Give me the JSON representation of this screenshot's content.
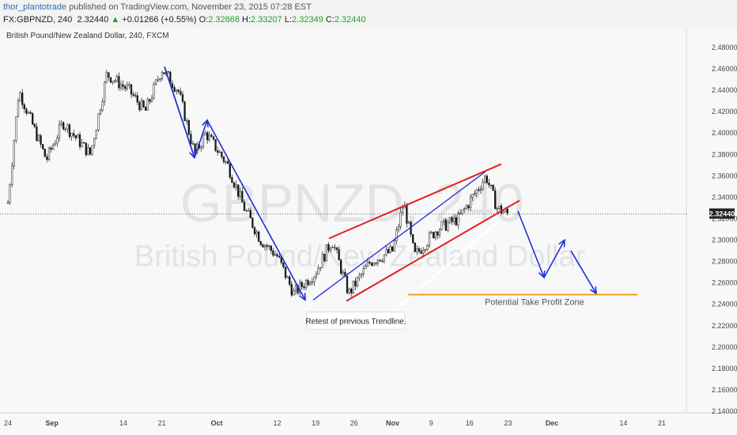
{
  "header": {
    "user": "thor_plantotrade",
    "published": "published on TradingView.com, November 23, 2015 07:28 EST",
    "symbol": "FX:GBPNZD, 240",
    "last": "2.32440",
    "change_arrow": "▲",
    "change": "+0.01266 (+0.55%)",
    "o_label": "O:",
    "o_val": "2.32868",
    "h_label": "H:",
    "h_val": "2.33207",
    "l_label": "L:",
    "l_val": "2.32349",
    "c_label": "C:",
    "c_val": "2.32440"
  },
  "chart_data": {
    "type": "candlestick",
    "symbol_label": "British Pound/New Zealand Dollar, 240, FXCM",
    "watermark_symbol": "GBPNZD, 240",
    "watermark_name": "British Pound/New Zealand Dollar",
    "ylim": [
      2.14,
      2.49
    ],
    "y_ticks": [
      "2.48000",
      "2.46000",
      "2.44000",
      "2.42000",
      "2.40000",
      "2.38000",
      "2.36000",
      "2.34000",
      "2.32000",
      "2.30000",
      "2.28000",
      "2.26000",
      "2.24000",
      "2.22000",
      "2.20000",
      "2.18000",
      "2.16000",
      "2.14000"
    ],
    "x_ticks": [
      "24",
      "Sep",
      "14",
      "21",
      "Oct",
      "12",
      "19",
      "26",
      "Nov",
      "9",
      "16",
      "23",
      "Dec",
      "14",
      "21"
    ],
    "last_price": "2.32440",
    "last_price_value": 2.3244,
    "path": [
      {
        "x": "Aug 24",
        "y": 2.335
      },
      {
        "x": "Aug 26",
        "y": 2.44
      },
      {
        "x": "Aug 31",
        "y": 2.375
      },
      {
        "x": "Sep 3",
        "y": 2.41
      },
      {
        "x": "Sep 8",
        "y": 2.38
      },
      {
        "x": "Sep 11",
        "y": 2.455
      },
      {
        "x": "Sep 15",
        "y": 2.44
      },
      {
        "x": "Sep 18",
        "y": 2.42
      },
      {
        "x": "Sep 21",
        "y": 2.46
      },
      {
        "x": "Sep 24",
        "y": 2.44
      },
      {
        "x": "Sep 27",
        "y": 2.38
      },
      {
        "x": "Sep 29",
        "y": 2.4
      },
      {
        "x": "Oct 3",
        "y": 2.37
      },
      {
        "x": "Oct 6",
        "y": 2.33
      },
      {
        "x": "Oct 9",
        "y": 2.3
      },
      {
        "x": "Oct 12",
        "y": 2.285
      },
      {
        "x": "Oct 15",
        "y": 2.25
      },
      {
        "x": "Oct 19",
        "y": 2.27
      },
      {
        "x": "Oct 22",
        "y": 2.3
      },
      {
        "x": "Oct 25",
        "y": 2.25
      },
      {
        "x": "Oct 29",
        "y": 2.28
      },
      {
        "x": "Nov 2",
        "y": 2.29
      },
      {
        "x": "Nov 4",
        "y": 2.335
      },
      {
        "x": "Nov 6",
        "y": 2.285
      },
      {
        "x": "Nov 10",
        "y": 2.31
      },
      {
        "x": "Nov 14",
        "y": 2.32
      },
      {
        "x": "Nov 19",
        "y": 2.36
      },
      {
        "x": "Nov 21",
        "y": 2.33
      },
      {
        "x": "Nov 23",
        "y": 2.3244
      }
    ],
    "annotations": {
      "retest_note": "Retest of previous Trendline.",
      "take_profit_label": "Potential Take Profit Zone",
      "take_profit_level": 2.249
    },
    "colors": {
      "channel": "#e02020",
      "trendline": "#1f2fd6",
      "take_profit": "#f0a020",
      "candle": "#1a1a1a"
    }
  }
}
